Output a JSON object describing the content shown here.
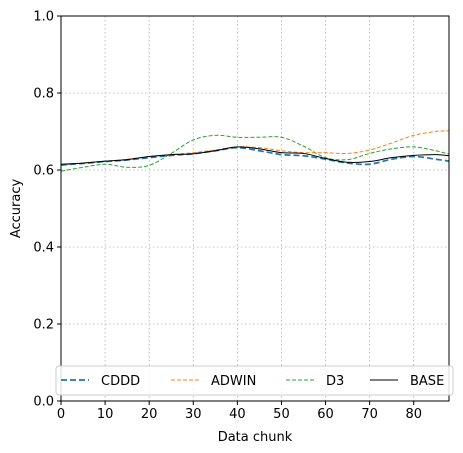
{
  "chart_data": {
    "type": "line",
    "title": "",
    "xlabel": "Data chunk",
    "ylabel": "Accuracy",
    "xlim": [
      0,
      88
    ],
    "ylim": [
      0.0,
      1.0
    ],
    "xticks": [
      "0",
      "10",
      "20",
      "30",
      "40",
      "50",
      "60",
      "70",
      "80"
    ],
    "yticks": [
      "0.0",
      "0.2",
      "0.4",
      "0.6",
      "0.8",
      "1.0"
    ],
    "grid": true,
    "legend_placement": "bottom",
    "x": [
      0,
      5,
      10,
      15,
      20,
      25,
      30,
      35,
      40,
      45,
      50,
      55,
      60,
      65,
      70,
      75,
      80,
      85,
      88
    ],
    "series": [
      {
        "name": "CDDD",
        "color": "#1f77b4",
        "style": "dashed",
        "values": [
          0.613,
          0.617,
          0.622,
          0.626,
          0.632,
          0.638,
          0.642,
          0.65,
          0.658,
          0.65,
          0.64,
          0.637,
          0.628,
          0.618,
          0.615,
          0.628,
          0.635,
          0.628,
          0.623
        ]
      },
      {
        "name": "ADWIN",
        "color": "#ff7f0e",
        "style": "dashed",
        "values": [
          0.612,
          0.618,
          0.622,
          0.628,
          0.635,
          0.64,
          0.645,
          0.652,
          0.66,
          0.658,
          0.65,
          0.645,
          0.645,
          0.643,
          0.652,
          0.67,
          0.69,
          0.7,
          0.702
        ]
      },
      {
        "name": "D3",
        "color": "#2ca02c",
        "style": "dashed",
        "values": [
          0.597,
          0.607,
          0.615,
          0.607,
          0.612,
          0.643,
          0.678,
          0.69,
          0.685,
          0.685,
          0.685,
          0.662,
          0.632,
          0.627,
          0.643,
          0.655,
          0.66,
          0.65,
          0.641
        ]
      },
      {
        "name": "BASE",
        "color": "#000000",
        "style": "solid",
        "values": [
          0.615,
          0.618,
          0.623,
          0.627,
          0.635,
          0.64,
          0.642,
          0.65,
          0.66,
          0.655,
          0.645,
          0.643,
          0.63,
          0.62,
          0.622,
          0.632,
          0.638,
          0.64,
          0.637
        ]
      }
    ]
  }
}
